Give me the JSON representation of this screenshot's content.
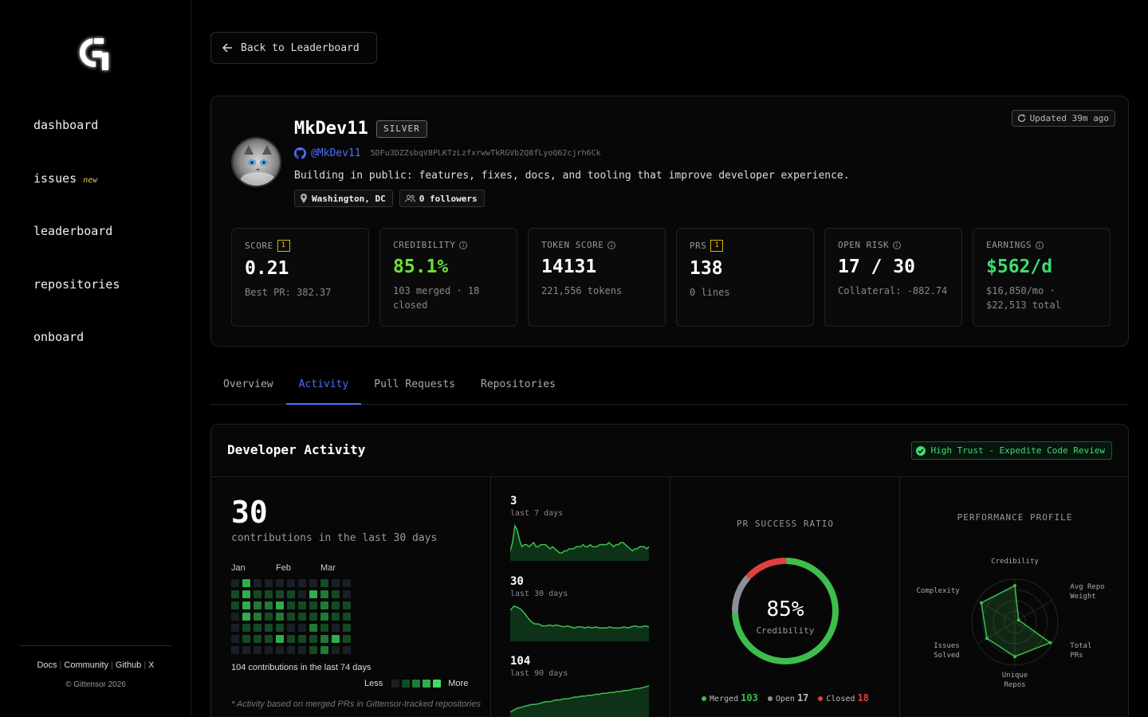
{
  "sidebar": {
    "nav": [
      {
        "label": "dashboard"
      },
      {
        "label": "issues",
        "badge": "new"
      },
      {
        "label": "leaderboard"
      },
      {
        "label": "repositories"
      },
      {
        "label": "onboard"
      }
    ],
    "links": [
      "Docs",
      "Community",
      "Github",
      "X"
    ],
    "copyright": "© Gittensor 2026"
  },
  "back_label": "Back to Leaderboard",
  "profile": {
    "name": "MkDev11",
    "tier": "SILVER",
    "updated": "Updated 39m ago",
    "github_handle": "@MkDev11",
    "hotkey": "5DFu3DZZsbqV8PLKTzLzfxrwwTkRGVb2Q8fLyoQ62cjrh6Ck",
    "bio": "Building in public: features, fixes, docs, and tooling that improve developer experience.",
    "location": "Washington, DC",
    "followers": "0 followers"
  },
  "stats": [
    {
      "label": "SCORE",
      "rank": "1",
      "value": "0.21",
      "sub": "Best PR: 382.37"
    },
    {
      "label": "CREDIBILITY",
      "info": true,
      "value": "85.1%",
      "sub": "103 merged · 18 closed"
    },
    {
      "label": "TOKEN SCORE",
      "info": true,
      "value": "14131",
      "sub": "221,556 tokens"
    },
    {
      "label": "PRS",
      "rank": "1",
      "value": "138",
      "sub": "0 lines"
    },
    {
      "label": "OPEN RISK",
      "info": true,
      "value": "17 / 30",
      "sub": "Collateral: -882.74"
    },
    {
      "label": "EARNINGS",
      "info": true,
      "value": "$562/d",
      "sub": "$16,850/mo · $22,513 total"
    }
  ],
  "tabs": [
    "Overview",
    "Activity",
    "Pull Requests",
    "Repositories"
  ],
  "active_tab": "Activity",
  "activity": {
    "title": "Developer Activity",
    "trust_badge": "High Trust - Expedite Code Review",
    "contributions_30": "30",
    "contributions_30_label": "contributions in the last 30 days",
    "months": [
      "Jan",
      "Feb",
      "Mar"
    ],
    "heatmap_levels": [
      0,
      1,
      1,
      0,
      0,
      0,
      0,
      3,
      3,
      3,
      3,
      1,
      1,
      0,
      0,
      1,
      2,
      2,
      1,
      1,
      0,
      0,
      1,
      2,
      1,
      1,
      1,
      0,
      0,
      1,
      3,
      2,
      1,
      3,
      0,
      0,
      1,
      1,
      1,
      0,
      1,
      0,
      0,
      0,
      1,
      1,
      0,
      1,
      0,
      0,
      3,
      1,
      1,
      2,
      1,
      1,
      1,
      2,
      2,
      2,
      1,
      2,
      2,
      0,
      1,
      1,
      1,
      0,
      3,
      0,
      0,
      0,
      1,
      1,
      1,
      1,
      0
    ],
    "contrib_74_label": "104 contributions in the last 74 days",
    "legend_less": "Less",
    "legend_more": "More",
    "footnote": "* Activity based on merged PRs in Gittensor-tracked repositories",
    "sparks": [
      {
        "value": "3",
        "label": "last 7 days",
        "points": [
          4,
          8,
          16,
          14,
          9,
          6,
          7,
          7,
          6,
          7,
          8,
          6,
          6,
          7,
          7,
          7,
          6,
          5,
          6,
          5,
          4,
          3,
          3,
          4,
          4,
          5,
          5,
          5,
          6,
          6,
          6,
          7,
          6,
          6,
          7,
          6,
          6,
          6,
          7,
          7,
          7,
          7,
          8,
          7,
          6,
          7,
          7,
          8,
          8,
          7,
          6,
          5,
          4,
          5,
          5,
          6,
          6,
          6,
          5,
          6
        ]
      },
      {
        "value": "30",
        "label": "last 30 days",
        "points": [
          30,
          34,
          33,
          31,
          27,
          22,
          18,
          16,
          16,
          14,
          14,
          15,
          14,
          15,
          14,
          13,
          14,
          13,
          12,
          13,
          13,
          12,
          13,
          12,
          13,
          12,
          12,
          12,
          13,
          12,
          12,
          12,
          13,
          12,
          13,
          14,
          13,
          13,
          14,
          13
        ]
      },
      {
        "value": "104",
        "label": "last 90 days",
        "points": [
          8,
          10,
          12,
          13,
          14,
          15,
          16,
          16,
          17,
          18,
          19,
          19,
          20,
          21,
          21,
          22,
          22,
          23,
          24,
          24,
          25,
          25,
          26,
          26,
          27,
          27,
          28,
          28,
          29,
          29,
          30,
          30,
          31,
          31,
          32,
          33,
          33,
          34,
          35,
          36
        ]
      }
    ],
    "pr_ratio": {
      "title": "PR SUCCESS RATIO",
      "percent_label": "85%",
      "sub_label": "Credibility",
      "merged_label": "Merged",
      "merged": 103,
      "open_label": "Open",
      "open": 17,
      "closed_label": "Closed",
      "closed": 18,
      "colors": {
        "merged": "#3dbe4c",
        "open": "#8a8f98",
        "closed": "#e04040"
      }
    },
    "performance": {
      "title": "PERFORMANCE PROFILE",
      "axes": [
        {
          "label": "Credibility",
          "value": 0.85
        },
        {
          "label": "Avg Repo Weight",
          "value": 0.1
        },
        {
          "label": "Total PRs",
          "value": 0.95
        },
        {
          "label": "Unique Repos",
          "value": 0.8
        },
        {
          "label": "Issues Solved",
          "value": 0.75
        },
        {
          "label": "Complexity",
          "value": 0.9
        }
      ]
    }
  }
}
